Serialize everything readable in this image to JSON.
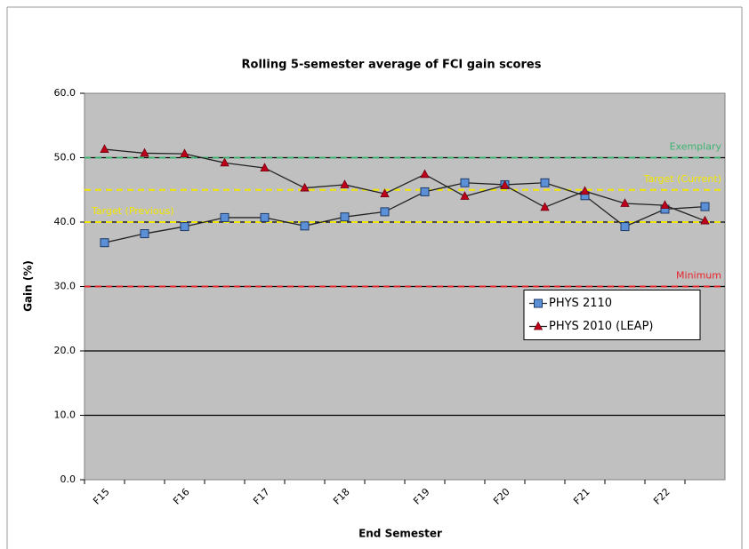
{
  "chart_data": {
    "type": "line",
    "title": "Rolling 5-semester average of FCI gain scores",
    "x_label": "End Semester",
    "y_label": "Gain (%)",
    "categories": [
      "F15",
      null,
      "F16",
      null,
      "F17",
      null,
      "F18",
      null,
      "F19",
      null,
      "F20",
      null,
      "F21",
      null,
      "F22",
      null
    ],
    "series": [
      {
        "name": "PHYS 2110",
        "color": "#5b8fd6",
        "marker": "square",
        "values": [
          36.8,
          38.2,
          39.3,
          40.7,
          40.7,
          39.4,
          40.8,
          41.6,
          44.7,
          46.1,
          45.8,
          46.1,
          44.1,
          39.3,
          42.0,
          42.4
        ]
      },
      {
        "name": "PHYS 2010 (LEAP)",
        "color": "#c0001a",
        "marker": "triangle",
        "values": [
          51.3,
          50.7,
          50.6,
          49.2,
          48.4,
          45.3,
          45.8,
          44.4,
          47.4,
          44.0,
          45.7,
          42.3,
          44.8,
          42.9,
          42.6,
          40.2
        ]
      }
    ],
    "reference_lines": [
      {
        "label": "Exemplary",
        "value": 50,
        "color": "#3cb371",
        "label_position": "right"
      },
      {
        "label": "Target (Current)",
        "value": 45,
        "color": "#f2e600",
        "label_position": "right"
      },
      {
        "label": "Target (Previous)",
        "value": 40,
        "color": "#f2e600",
        "label_position": "left"
      },
      {
        "label": "Minimum",
        "value": 30,
        "color": "#e8242a",
        "label_position": "right"
      }
    ],
    "ylim": [
      0,
      60
    ],
    "yticks": [
      {
        "value": 0,
        "label": "0.0"
      },
      {
        "value": 10,
        "label": "10.0"
      },
      {
        "value": 20,
        "label": "20.0"
      },
      {
        "value": 30,
        "label": "30.0"
      },
      {
        "value": 40,
        "label": "40.0"
      },
      {
        "value": 50,
        "label": "50.0"
      },
      {
        "value": 60,
        "label": "60.0"
      }
    ],
    "grid": true,
    "legend": "lower right",
    "plot_background": "#c0c0c0"
  }
}
